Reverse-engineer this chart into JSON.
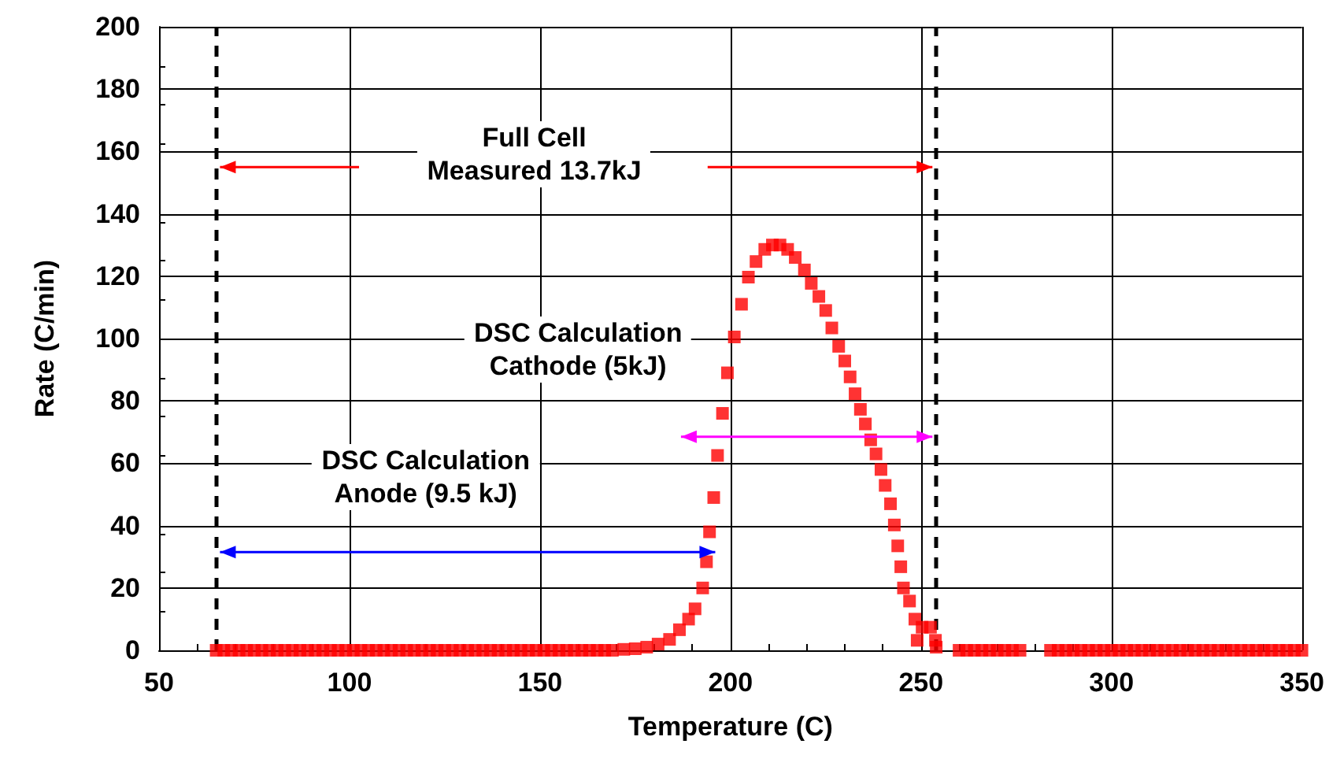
{
  "chart_data": {
    "type": "scatter",
    "xlabel": "Temperature (C)",
    "ylabel": "Rate (C/min)",
    "xlim": [
      50,
      350
    ],
    "xticks": [
      50,
      100,
      150,
      200,
      250,
      300,
      350
    ],
    "ylim": [
      0,
      200
    ],
    "yticks": [
      0,
      20,
      40,
      60,
      80,
      100,
      120,
      140,
      160,
      180,
      200
    ],
    "grid": true,
    "marker": "square",
    "series": [
      {
        "color": "#ff0000",
        "x": [
          65,
          67,
          69,
          71,
          73,
          75,
          77,
          79,
          81,
          83,
          85,
          87,
          89,
          91,
          93,
          95,
          97,
          99,
          101,
          103,
          105,
          107,
          109,
          111,
          113,
          115,
          117,
          119,
          121,
          123,
          125,
          127,
          129,
          131,
          133,
          135,
          137,
          139,
          141,
          143,
          145,
          147,
          149,
          151,
          153,
          155,
          157,
          159,
          161,
          163,
          165,
          167,
          169,
          172,
          175,
          178,
          181,
          184,
          186.6,
          189,
          190.7,
          192.7,
          193.7,
          194.5,
          195.6,
          196.6,
          197.9,
          199.2,
          201,
          202.9,
          204.7,
          206.7,
          209,
          211,
          213,
          215,
          217,
          219.4,
          221.2,
          223.2,
          225,
          226.6,
          228.4,
          230,
          231.4,
          232.7,
          234.1,
          235.4,
          236.8,
          238.2,
          239.5,
          240.6,
          242,
          243,
          243.9,
          244.7,
          245.4,
          247,
          248.4,
          249,
          250.3,
          252.5,
          253.8,
          254,
          260,
          262,
          264,
          266,
          268,
          270,
          272,
          274,
          276,
          284,
          286,
          288,
          290,
          292,
          294,
          296,
          298,
          300,
          302,
          304,
          306,
          308,
          310,
          312,
          314,
          316,
          318,
          320,
          322,
          324,
          326,
          328,
          330,
          332,
          334,
          336,
          338,
          340,
          342,
          344,
          346,
          348,
          350
        ],
        "values": [
          0,
          0,
          0,
          0,
          0,
          0,
          0,
          0,
          0,
          0,
          0,
          0,
          0,
          0,
          0,
          0,
          0,
          0,
          0,
          0,
          0,
          0,
          0,
          0,
          0,
          0,
          0,
          0,
          0,
          0,
          0,
          0,
          0,
          0,
          0,
          0,
          0,
          0,
          0,
          0,
          0,
          0,
          0,
          0,
          0,
          0,
          0,
          0,
          0,
          0,
          0,
          0,
          0,
          0.3,
          0.5,
          1,
          2,
          3.5,
          6.6,
          10,
          13.3,
          20,
          28.4,
          38,
          49,
          62.5,
          76,
          89,
          100.5,
          111,
          119.7,
          124.7,
          128.6,
          130,
          130,
          128.6,
          126,
          122,
          117.7,
          113.5,
          109,
          103.4,
          97.5,
          92.8,
          87.7,
          82.3,
          77.3,
          72.6,
          67.5,
          63,
          58,
          52.9,
          47,
          40.2,
          33.5,
          26.8,
          20,
          15.8,
          10,
          3.2,
          7.4,
          7.4,
          3.2,
          1,
          0,
          0,
          0,
          0,
          0,
          0,
          0,
          0,
          0,
          0,
          0,
          0,
          0,
          0,
          0,
          0,
          0,
          0,
          0,
          0,
          0,
          0,
          0,
          0,
          0,
          0,
          0,
          0,
          0,
          0,
          0,
          0,
          0,
          0,
          0,
          0,
          0,
          0,
          0,
          0,
          0,
          0,
          0
        ]
      }
    ],
    "ref_lines": [
      {
        "axis": "x",
        "value": 65,
        "color": "#000000",
        "line_style": "dashed"
      },
      {
        "axis": "x",
        "value": 254,
        "color": "#000000",
        "line_style": "dashed"
      }
    ],
    "annotations": [
      "Full Cell\nMeasured 13.7kJ",
      "DSC Calculation\nCathode (5kJ)",
      "DSC Calculation\nAnode (9.5 kJ)"
    ]
  }
}
